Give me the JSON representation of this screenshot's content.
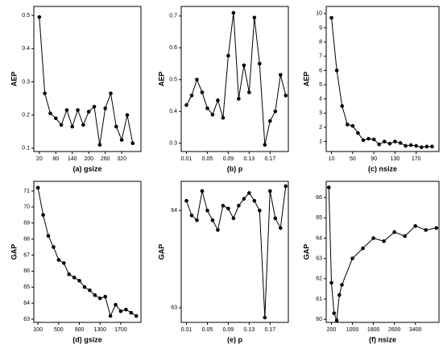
{
  "chart_data": [
    {
      "type": "line",
      "xlabel": "(a) gsize",
      "ylabel": "AEP",
      "color": "#000000",
      "x": [
        20,
        40,
        60,
        80,
        100,
        120,
        140,
        160,
        180,
        200,
        220,
        240,
        260,
        280,
        300,
        320,
        340,
        360
      ],
      "values": [
        0.495,
        0.265,
        0.205,
        0.19,
        0.17,
        0.215,
        0.165,
        0.215,
        0.17,
        0.21,
        0.225,
        0.11,
        0.22,
        0.265,
        0.165,
        0.125,
        0.2,
        0.115
      ],
      "xlim": [
        0,
        390
      ],
      "ylim": [
        0.09,
        0.527
      ],
      "xticks": [
        20,
        80,
        140,
        200,
        260,
        320
      ],
      "yticks": [
        0.1,
        0.2,
        0.3,
        0.4,
        0.5
      ]
    },
    {
      "type": "line",
      "xlabel": "(b) p",
      "ylabel": "AEP",
      "color": "#000000",
      "x": [
        0.01,
        0.02,
        0.03,
        0.04,
        0.05,
        0.06,
        0.07,
        0.08,
        0.09,
        0.1,
        0.11,
        0.12,
        0.13,
        0.14,
        0.15,
        0.16,
        0.17,
        0.18,
        0.19,
        0.2
      ],
      "values": [
        0.42,
        0.45,
        0.5,
        0.46,
        0.41,
        0.39,
        0.435,
        0.38,
        0.575,
        0.71,
        0.44,
        0.545,
        0.46,
        0.695,
        0.55,
        0.295,
        0.37,
        0.4,
        0.515,
        0.45
      ],
      "xlim": [
        0,
        0.205
      ],
      "ylim": [
        0.274,
        0.73
      ],
      "xticks": [
        0.01,
        0.05,
        0.09,
        0.13,
        0.17
      ],
      "yticks": [
        0.3,
        0.4,
        0.5,
        0.6,
        0.7
      ]
    },
    {
      "type": "line",
      "xlabel": "(c) nsize",
      "ylabel": "AEP",
      "color": "#000000",
      "x": [
        10,
        20,
        30,
        40,
        50,
        60,
        70,
        80,
        90,
        100,
        110,
        120,
        130,
        140,
        150,
        160,
        170,
        180,
        190,
        200
      ],
      "values": [
        9.7,
        6.0,
        3.5,
        2.2,
        2.1,
        1.6,
        1.1,
        1.2,
        1.15,
        0.8,
        1.0,
        0.85,
        1.0,
        0.9,
        0.7,
        0.75,
        0.7,
        0.6,
        0.65,
        0.65
      ],
      "xlim": [
        0,
        213
      ],
      "ylim": [
        0.3,
        10.5
      ],
      "xticks": [
        10,
        50,
        90,
        130,
        170
      ],
      "yticks": [
        1,
        2,
        3,
        4,
        5,
        6,
        7,
        8,
        9,
        10
      ]
    },
    {
      "type": "line",
      "xlabel": "(d) gsize",
      "ylabel": "GAP",
      "color": "#000000",
      "x": [
        100,
        200,
        300,
        400,
        500,
        600,
        700,
        800,
        900,
        1000,
        1100,
        1200,
        1300,
        1400,
        1500,
        1600,
        1700,
        1800,
        1900,
        2000
      ],
      "values": [
        71.2,
        69.5,
        68.2,
        67.5,
        66.7,
        66.5,
        65.8,
        65.6,
        65.4,
        65.0,
        64.8,
        64.5,
        64.3,
        64.4,
        63.2,
        63.9,
        63.5,
        63.6,
        63.4,
        63.2
      ],
      "xlim": [
        20,
        2090
      ],
      "ylim": [
        62.8,
        71.6
      ],
      "xticks": [
        100,
        500,
        900,
        1300,
        1700
      ],
      "yticks": [
        63,
        64,
        65,
        66,
        67,
        68,
        69,
        70,
        71
      ]
    },
    {
      "type": "line",
      "xlabel": "(e) p",
      "ylabel": "GAP",
      "color": "#000000",
      "x": [
        0.01,
        0.02,
        0.03,
        0.04,
        0.05,
        0.06,
        0.07,
        0.08,
        0.09,
        0.1,
        0.11,
        0.12,
        0.13,
        0.14,
        0.15,
        0.16,
        0.17,
        0.18,
        0.19,
        0.2
      ],
      "values": [
        64.1,
        63.95,
        63.9,
        64.2,
        64.0,
        63.9,
        63.8,
        64.05,
        64.02,
        63.92,
        64.05,
        64.12,
        64.18,
        64.1,
        64.0,
        62.9,
        64.2,
        63.92,
        63.82,
        64.25
      ],
      "xlim": [
        0,
        0.205
      ],
      "ylim": [
        62.85,
        64.3
      ],
      "xticks": [
        0.01,
        0.05,
        0.09,
        0.13,
        0.17
      ],
      "yticks": [
        63,
        64
      ]
    },
    {
      "type": "line",
      "xlabel": "(f) nsize",
      "ylabel": "GAP",
      "color": "#000000",
      "x": [
        100,
        200,
        300,
        400,
        500,
        600,
        1000,
        1400,
        1800,
        2200,
        2600,
        3000,
        3400,
        3800,
        4200
      ],
      "values": [
        66.5,
        61.8,
        60.3,
        59.95,
        61.2,
        61.7,
        63.0,
        63.5,
        64.0,
        63.85,
        64.3,
        64.1,
        64.6,
        64.4,
        64.5
      ],
      "xlim": [
        0,
        4300
      ],
      "ylim": [
        59.85,
        66.8
      ],
      "xticks": [
        200,
        1000,
        1800,
        2600,
        3400
      ],
      "yticks": [
        60,
        61,
        62,
        63,
        64,
        65,
        66
      ]
    }
  ]
}
